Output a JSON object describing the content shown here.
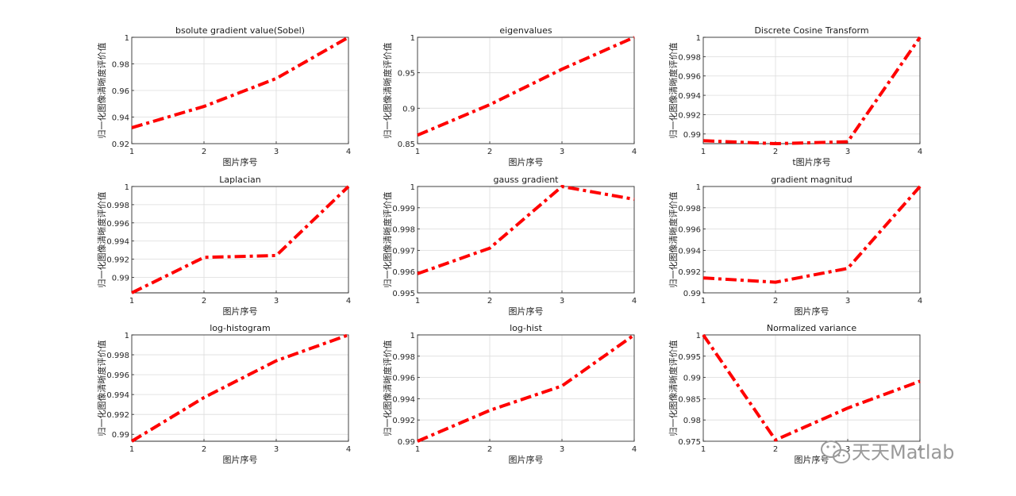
{
  "watermark": {
    "text": "天天Matlab",
    "icon": "wechat-icon"
  },
  "line_color": "#ff0000",
  "chart_data": [
    {
      "type": "line",
      "title": "bsolute gradient value(Sobel)",
      "xlabel": "图片序号",
      "ylabel": "归一化图像清晰度评价值",
      "x": [
        1,
        2,
        3,
        4
      ],
      "values": [
        0.932,
        0.948,
        0.969,
        1.0
      ],
      "xlim": [
        1,
        4
      ],
      "ylim": [
        0.92,
        1.0
      ],
      "xticks": [
        "1",
        "2",
        "3",
        "4"
      ],
      "yticks": [
        "0.92",
        "0.94",
        "0.96",
        "0.98",
        "1"
      ],
      "grid": true
    },
    {
      "type": "line",
      "title": "eigenvalues",
      "xlabel": "图片序号",
      "ylabel": "归一化图像清晰度评价值",
      "x": [
        1,
        2,
        3,
        4
      ],
      "values": [
        0.862,
        0.905,
        0.955,
        1.0
      ],
      "xlim": [
        1,
        4
      ],
      "ylim": [
        0.85,
        1.0
      ],
      "xticks": [
        "1",
        "2",
        "3",
        "4"
      ],
      "yticks": [
        "0.85",
        "0.9",
        "0.95",
        "1"
      ],
      "grid": true
    },
    {
      "type": "line",
      "title": "Discrete Cosine Transform",
      "xlabel": "t图片序号",
      "ylabel": "归一化图像清晰度评价值",
      "x": [
        1,
        2,
        3,
        4
      ],
      "values": [
        0.9893,
        0.989,
        0.9892,
        1.0
      ],
      "xlim": [
        1,
        4
      ],
      "ylim": [
        0.989,
        1.0
      ],
      "xticks": [
        "1",
        "2",
        "3",
        "4"
      ],
      "yticks": [
        "0.99",
        "0.992",
        "0.994",
        "0.996",
        "0.998",
        "1"
      ],
      "grid": true
    },
    {
      "type": "line",
      "title": "Laplacian",
      "xlabel": "图片序号",
      "ylabel": "归一化图像清晰度评价值",
      "x": [
        1,
        2,
        3,
        4
      ],
      "values": [
        0.9883,
        0.9922,
        0.9924,
        1.0
      ],
      "xlim": [
        1,
        4
      ],
      "ylim": [
        0.9883,
        1.0
      ],
      "xticks": [
        "1",
        "2",
        "3",
        "4"
      ],
      "yticks": [
        "0.99",
        "0.992",
        "0.994",
        "0.996",
        "0.998",
        "1"
      ],
      "grid": true
    },
    {
      "type": "line",
      "title": "gauss gradient",
      "xlabel": "图片序号",
      "ylabel": "归一化图像清晰度评价值",
      "x": [
        1,
        2,
        3,
        4
      ],
      "values": [
        0.9959,
        0.9971,
        1.0,
        0.9994
      ],
      "xlim": [
        1,
        4
      ],
      "ylim": [
        0.995,
        1.0
      ],
      "xticks": [
        "1",
        "2",
        "3",
        "4"
      ],
      "yticks": [
        "0.995",
        "0.996",
        "0.997",
        "0.998",
        "0.999",
        "1"
      ],
      "grid": true
    },
    {
      "type": "line",
      "title": "gradient magnitud",
      "xlabel": "图片序号",
      "ylabel": "归一化图像清晰度评价值",
      "x": [
        1,
        2,
        3,
        4
      ],
      "values": [
        0.9914,
        0.991,
        0.9923,
        1.0
      ],
      "xlim": [
        1,
        4
      ],
      "ylim": [
        0.99,
        1.0
      ],
      "xticks": [
        "1",
        "2",
        "3",
        "4"
      ],
      "yticks": [
        "0.99",
        "0.992",
        "0.994",
        "0.996",
        "0.998",
        "1"
      ],
      "grid": true
    },
    {
      "type": "line",
      "title": "log-histogram",
      "xlabel": "图片序号",
      "ylabel": "归一化图像清晰度评价值",
      "x": [
        1,
        2,
        3,
        4
      ],
      "values": [
        0.9893,
        0.9937,
        0.9974,
        1.0
      ],
      "xlim": [
        1,
        4
      ],
      "ylim": [
        0.9893,
        1.0
      ],
      "xticks": [
        "1",
        "2",
        "3",
        "4"
      ],
      "yticks": [
        "0.99",
        "0.992",
        "0.994",
        "0.996",
        "0.998",
        "1"
      ],
      "grid": true
    },
    {
      "type": "line",
      "title": "log-hist",
      "xlabel": "图片序号",
      "ylabel": "归一化图像清晰度评价值",
      "x": [
        1,
        2,
        3,
        4
      ],
      "values": [
        0.99,
        0.9929,
        0.9952,
        1.0
      ],
      "xlim": [
        1,
        4
      ],
      "ylim": [
        0.99,
        1.0
      ],
      "xticks": [
        "1",
        "2",
        "3",
        "4"
      ],
      "yticks": [
        "0.99",
        "0.992",
        "0.994",
        "0.996",
        "0.998",
        "1"
      ],
      "grid": true
    },
    {
      "type": "line",
      "title": "Normalized variance",
      "xlabel": "图片序号",
      "ylabel": "归一化图像清晰度评价值",
      "x": [
        1,
        2,
        3,
        4
      ],
      "values": [
        1.0,
        0.9753,
        0.9828,
        0.9891
      ],
      "xlim": [
        1,
        4
      ],
      "ylim": [
        0.975,
        1.0
      ],
      "xticks": [
        "1",
        "2",
        "3",
        "4"
      ],
      "yticks": [
        "0.975",
        "0.98",
        "0.985",
        "0.99",
        "0.995",
        "1"
      ],
      "grid": true
    }
  ]
}
